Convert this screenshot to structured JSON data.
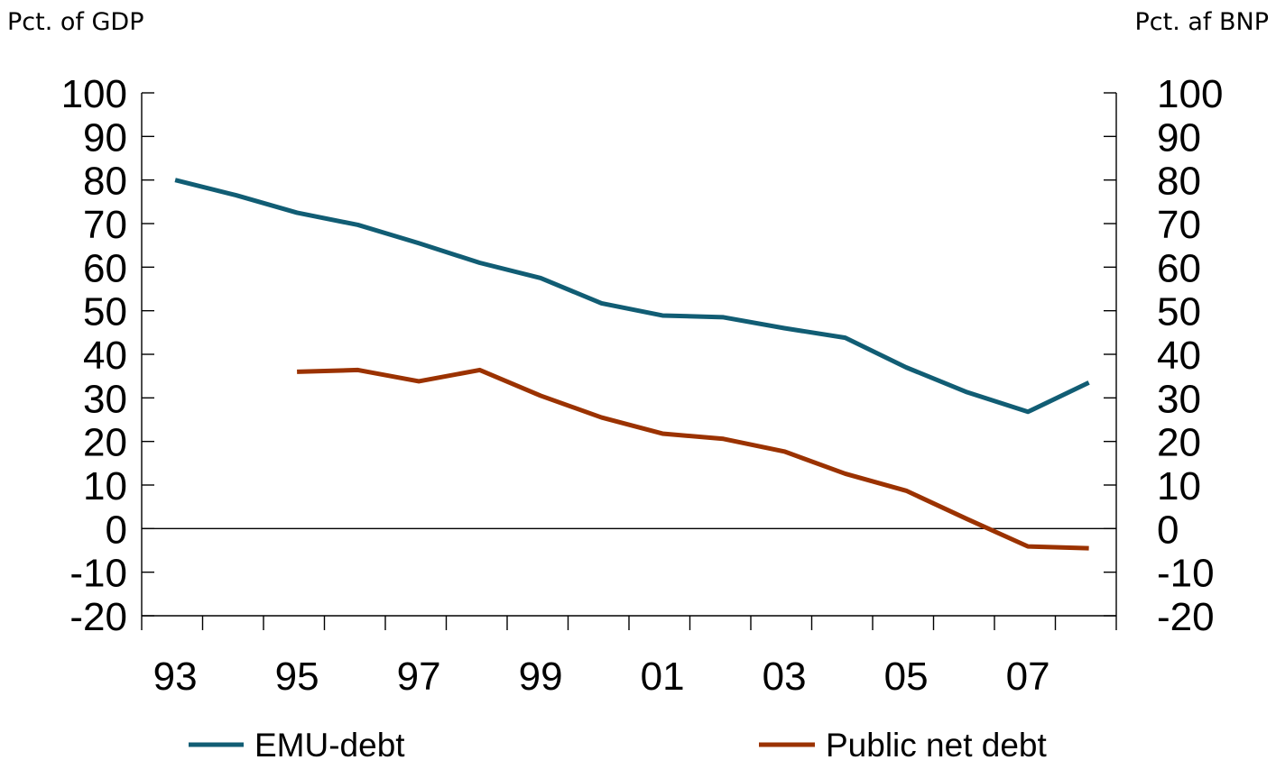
{
  "chart_data": {
    "type": "line",
    "left_unit_label": "Pct. of GDP",
    "right_unit_label": "Pct. af BNP",
    "ylim": [
      -20,
      100
    ],
    "y_ticks": [
      100,
      90,
      80,
      70,
      60,
      50,
      40,
      30,
      20,
      10,
      0,
      -10,
      -20
    ],
    "y_tick_labels": [
      "100",
      "90",
      "80",
      "70",
      "60",
      "50",
      "40",
      "30",
      "20",
      "10",
      "0",
      "-10",
      "-20"
    ],
    "x_range": [
      1992.45,
      2008.45
    ],
    "x_ticks": [
      1992.45,
      1993.45,
      1994.45,
      1995.45,
      1996.45,
      1997.45,
      1998.45,
      1999.45,
      2000.45,
      2001.45,
      2002.45,
      2003.45,
      2004.45,
      2005.45,
      2006.45,
      2007.45,
      2008.45
    ],
    "x_labels": [
      {
        "label": "93",
        "x": 1993
      },
      {
        "label": "95",
        "x": 1995
      },
      {
        "label": "97",
        "x": 1997
      },
      {
        "label": "99",
        "x": 1999
      },
      {
        "label": "01",
        "x": 2001
      },
      {
        "label": "03",
        "x": 2003
      },
      {
        "label": "05",
        "x": 2005
      },
      {
        "label": "07",
        "x": 2007
      }
    ],
    "zero_line": true,
    "legend_position": "bottom",
    "series": [
      {
        "name": "EMU-debt",
        "color": "#115d74",
        "points": [
          {
            "x": 1993,
            "y": 80
          },
          {
            "x": 1994,
            "y": 76.5
          },
          {
            "x": 1995,
            "y": 72.5
          },
          {
            "x": 1996,
            "y": 69.7
          },
          {
            "x": 1997,
            "y": 65.5
          },
          {
            "x": 1998,
            "y": 61
          },
          {
            "x": 1999,
            "y": 57.5
          },
          {
            "x": 2000,
            "y": 51.7
          },
          {
            "x": 2001,
            "y": 48.9
          },
          {
            "x": 2002,
            "y": 48.5
          },
          {
            "x": 2003,
            "y": 46
          },
          {
            "x": 2004,
            "y": 43.8
          },
          {
            "x": 2005,
            "y": 37
          },
          {
            "x": 2006,
            "y": 31.3
          },
          {
            "x": 2007,
            "y": 26.8
          },
          {
            "x": 2008,
            "y": 33.5
          }
        ]
      },
      {
        "name": "Public net debt",
        "color": "#9b3200",
        "points": [
          {
            "x": 1995,
            "y": 36
          },
          {
            "x": 1996,
            "y": 36.4
          },
          {
            "x": 1997,
            "y": 33.8
          },
          {
            "x": 1998,
            "y": 36.4
          },
          {
            "x": 1999,
            "y": 30.5
          },
          {
            "x": 2000,
            "y": 25.5
          },
          {
            "x": 2001,
            "y": 21.8
          },
          {
            "x": 2002,
            "y": 20.6
          },
          {
            "x": 2003,
            "y": 17.7
          },
          {
            "x": 2004,
            "y": 12.6
          },
          {
            "x": 2005,
            "y": 8.7
          },
          {
            "x": 2006,
            "y": 2.2
          },
          {
            "x": 2007,
            "y": -4.1
          },
          {
            "x": 2008,
            "y": -4.5
          }
        ]
      }
    ]
  }
}
